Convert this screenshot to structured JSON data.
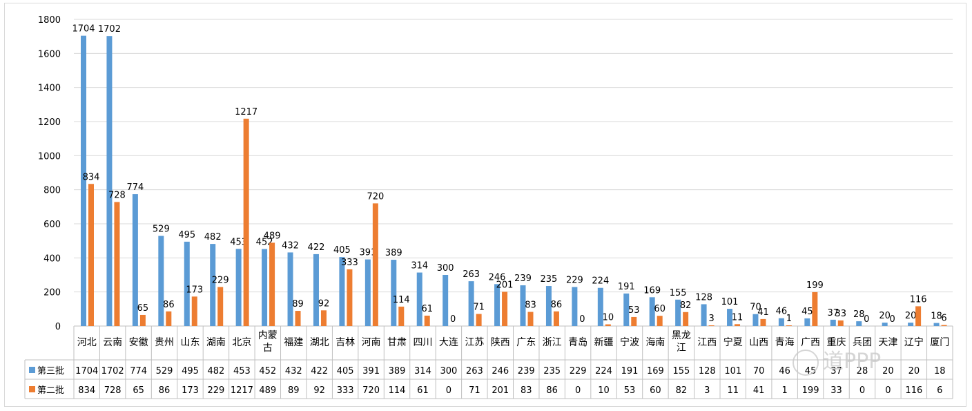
{
  "chart_data": {
    "type": "bar",
    "ylim": [
      0,
      1800
    ],
    "yticks": [
      0,
      200,
      400,
      600,
      800,
      1000,
      1200,
      1400,
      1600,
      1800
    ],
    "grid": true,
    "legend_position": "data-table-left",
    "categories": [
      "河北",
      "云南",
      "安徽",
      "贵州",
      "山东",
      "湖南",
      "北京",
      "内蒙古",
      "福建",
      "湖北",
      "吉林",
      "河南",
      "甘肃",
      "四川",
      "大连",
      "江苏",
      "陕西",
      "广东",
      "浙江",
      "青岛",
      "新疆",
      "宁波",
      "海南",
      "黑龙江",
      "江西",
      "宁夏",
      "山西",
      "青海",
      "广西",
      "重庆",
      "兵团",
      "天津",
      "辽宁",
      "厦门"
    ],
    "series": [
      {
        "name": "第三批",
        "color": "#5b9bd5",
        "values": [
          1704,
          1702,
          774,
          529,
          495,
          482,
          453,
          452,
          432,
          422,
          405,
          391,
          389,
          314,
          300,
          263,
          246,
          239,
          235,
          229,
          224,
          191,
          169,
          155,
          128,
          101,
          70,
          46,
          45,
          37,
          28,
          20,
          20,
          18
        ]
      },
      {
        "name": "第二批",
        "color": "#ed7d31",
        "values": [
          834,
          728,
          65,
          86,
          173,
          229,
          1217,
          489,
          89,
          92,
          333,
          720,
          114,
          61,
          0,
          71,
          201,
          83,
          86,
          0,
          10,
          53,
          60,
          82,
          3,
          11,
          41,
          1,
          199,
          33,
          0,
          0,
          116,
          6
        ]
      }
    ]
  },
  "watermark": "道PPP"
}
